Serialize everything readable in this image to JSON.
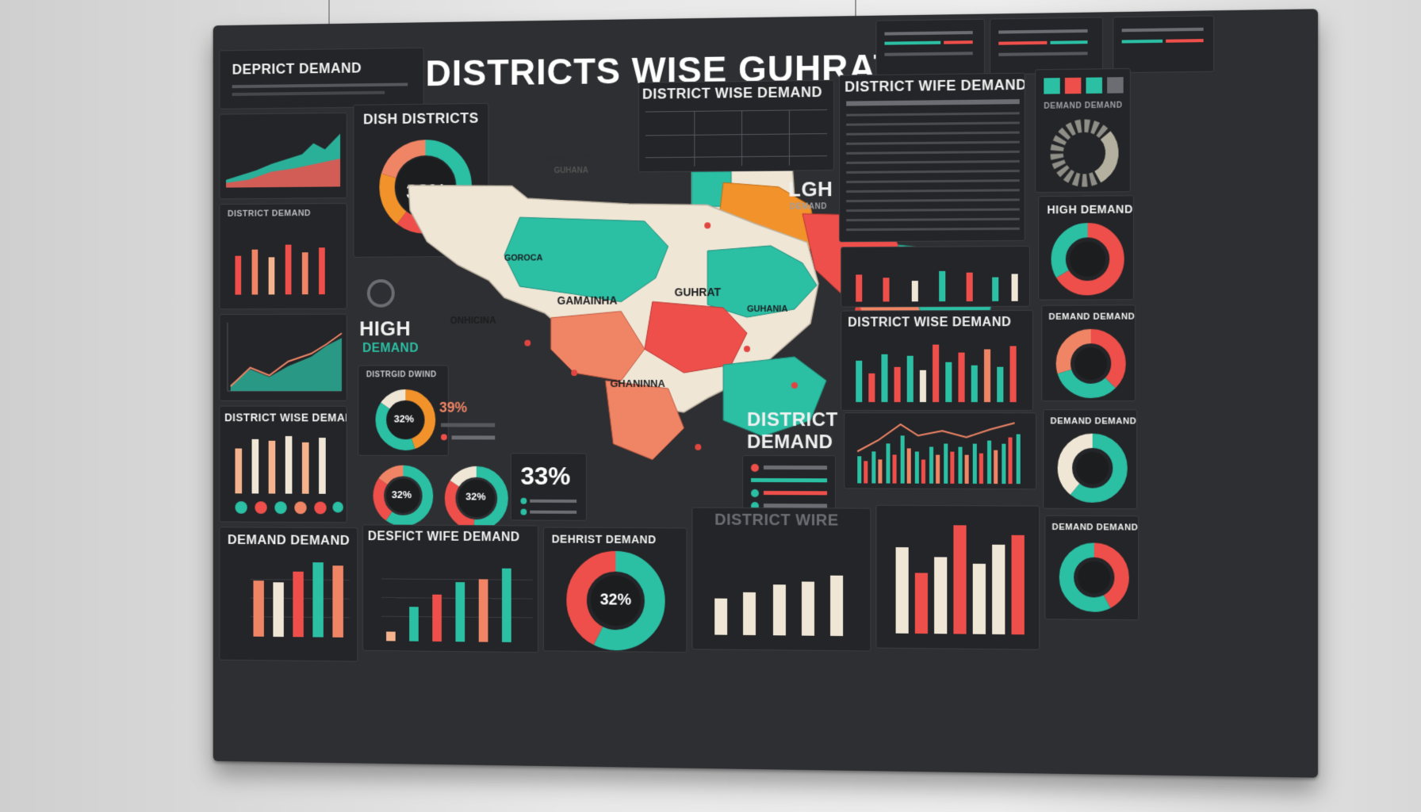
{
  "dashboard": {
    "main_title": "DISTRICTS WISE GUHRAT",
    "header_left": "DEPRICT DEMAND",
    "dish_title": "DISH DISTRICTS",
    "dish_pct": "32%",
    "map_title": "DISTRICTS",
    "map_sub": "GUHANA",
    "map_labels": [
      "GAMAINHA",
      "GUHRAT",
      "GHANINNA",
      "ONHICINA",
      "GOROCA",
      "GUHANIA"
    ],
    "high_demand_1": "HIGH",
    "high_demand_2": "DEMAND",
    "lgh_1": "LGH",
    "lgh_2": "DEMAND",
    "district_demand_1": "DISTRICT",
    "district_demand_2": "DEMAND",
    "pct_39": "39%",
    "pct_33": "33%",
    "pct_32b": "32%",
    "pct_36": "32%",
    "pct_32c": "32%",
    "mid_donut_title": "DISTRGID DWIND",
    "panel_titles": {
      "left_district_demand": "DISTRICT DEMAND",
      "left_dwd": "DISTRICT WISE DEMAND",
      "demand_demand": "DEMAND DEMAND",
      "dwd_bottom": "DESFICT WIFE DEMAND",
      "dehrist": "DEHRIST DEMAND",
      "district_wire": "DISTRICT WIRE",
      "dwd_top_mid": "DISTRICT WISE DEMAND",
      "dwd_top_right": "DISTRICT WIFE DEMAND",
      "dwd_right_mid": "DISTRICT WISE DEMAND",
      "high_demand_right": "HIGH DEMAND",
      "demand_demand_r1": "DEMAND DEMAND",
      "demand_demand_r2": "DEMAND DEMAND",
      "demand_demand_r3": "DEMAND DEMAND",
      "district_wise_faint": "DISTRICT WISE",
      "gear_top": "DEMAND DEMAND"
    },
    "colors": {
      "teal": "#2bbfa4",
      "coral": "#ef4f4a",
      "salmon": "#f08566",
      "peach": "#f4b38d",
      "cream": "#efe6d6",
      "orange": "#f2922a",
      "bg": "#2e2f32"
    }
  }
}
